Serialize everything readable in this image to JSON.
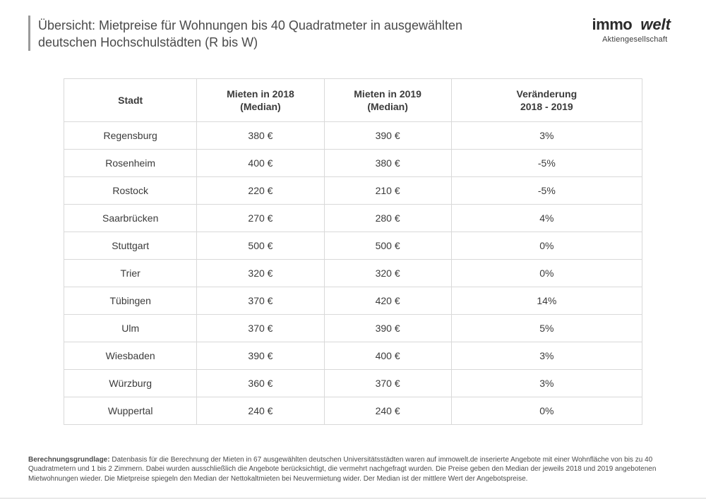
{
  "header": {
    "title_line1": "Übersicht: Mietpreise für Wohnungen bis 40 Quadratmeter in ausgewählten",
    "title_line2": "deutschen Hochschulstädten (R bis W)"
  },
  "logo": {
    "part1": "immo",
    "part2": "welt",
    "subtitle": "Aktiengesellschaft",
    "badge_color": "#f6b100",
    "text_color": "#2b2b2b"
  },
  "table": {
    "type": "table",
    "border_color": "#d9d9d9",
    "background_color": "#ffffff",
    "font_size": 14,
    "header_font_weight": 700,
    "columns": [
      {
        "label": "Stadt",
        "width_pct": 23,
        "align": "center"
      },
      {
        "label": "Mieten in 2018 (Median)",
        "width_pct": 22,
        "align": "center"
      },
      {
        "label": "Mieten in 2019 (Median)",
        "width_pct": 22,
        "align": "center"
      },
      {
        "label": "Veränderung 2018 - 2019",
        "width_pct": 33,
        "align": "center"
      }
    ],
    "rows": [
      [
        "Regensburg",
        "380 €",
        "390 €",
        "3%"
      ],
      [
        "Rosenheim",
        "400 €",
        "380 €",
        "-5%"
      ],
      [
        "Rostock",
        "220 €",
        "210 €",
        "-5%"
      ],
      [
        "Saarbrücken",
        "270 €",
        "280 €",
        "4%"
      ],
      [
        "Stuttgart",
        "500 €",
        "500 €",
        "0%"
      ],
      [
        "Trier",
        "320 €",
        "320 €",
        "0%"
      ],
      [
        "Tübingen",
        "370 €",
        "420 €",
        "14%"
      ],
      [
        "Ulm",
        "370 €",
        "390 €",
        "5%"
      ],
      [
        "Wiesbaden",
        "390 €",
        "400 €",
        "3%"
      ],
      [
        "Würzburg",
        "360 €",
        "370 €",
        "3%"
      ],
      [
        "Wuppertal",
        "240 €",
        "240 €",
        "0%"
      ]
    ]
  },
  "footnote": {
    "label": "Berechnungsgrundlage:",
    "text": "Datenbasis für die Berechnung der Mieten in 67 ausgewählten deutschen Universitätsstädten waren auf immowelt.de inserierte Angebote mit einer Wohnfläche von bis zu 40 Quadratmetern und 1 bis 2 Zimmern. Dabei wurden ausschließlich die Angebote berücksichtigt, die vermehrt nachgefragt wurden. Die Preise geben den Median der jeweils 2018 und 2019 angebotenen Mietwohnungen wieder. Die Mietpreise spiegeln den Median der Nettokaltmieten bei Neuvermietung wider. Der Median ist der mittlere Wert der Angebotspreise."
  },
  "colors": {
    "text": "#3b3b3b",
    "title_bar": "#9a9a9a",
    "page_background": "#ffffff"
  }
}
